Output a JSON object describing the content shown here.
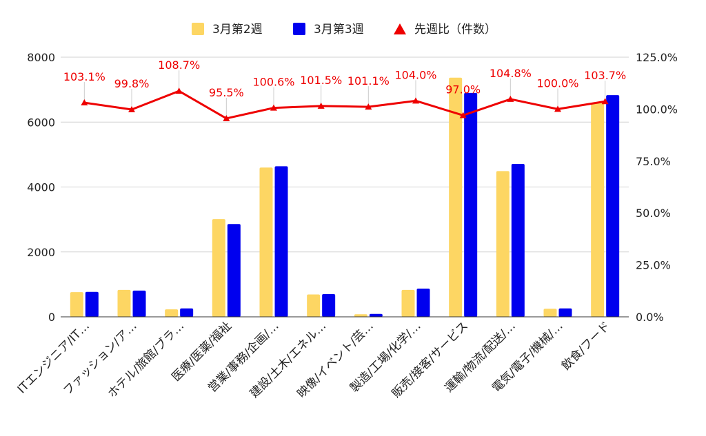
{
  "chart_data": {
    "type": "bar",
    "categories": [
      "ITエンジニア/IT…",
      "ファッション/ア…",
      "ホテル/旅館/ブラ…",
      "医療/医薬/福祉",
      "営業/事務/企画/…",
      "建設/土木/エネル…",
      "映像/イベント/芸…",
      "製造/工場/化学/…",
      "販売/接客/サービス",
      "運輸/物流/配送/…",
      "電気/電子/機械/…",
      "飲食/フード"
    ],
    "series": [
      {
        "name": "3月第2週",
        "color": "#FDD663",
        "axis": "left",
        "values": [
          760,
          830,
          230,
          3010,
          4600,
          690,
          80,
          830,
          7370,
          4490,
          250,
          6590
        ]
      },
      {
        "name": "3月第3週",
        "color": "#0000EE",
        "axis": "left",
        "values": [
          770,
          810,
          260,
          2860,
          4640,
          700,
          90,
          870,
          6900,
          4710,
          260,
          6830
        ]
      },
      {
        "name": "先週比（件数）",
        "type": "line",
        "color": "#EE0000",
        "axis": "right",
        "values": [
          103.1,
          99.8,
          108.7,
          95.5,
          100.6,
          101.5,
          101.1,
          104.0,
          97.0,
          104.8,
          100.0,
          103.7
        ],
        "labels": [
          "103.1%",
          "99.8%",
          "108.7%",
          "95.5%",
          "100.6%",
          "101.5%",
          "101.1%",
          "104.0%",
          "97.0%",
          "104.8%",
          "100.0%",
          "103.7%"
        ]
      }
    ],
    "y_left": {
      "min": 0,
      "max": 8000,
      "ticks": [
        "0",
        "2000",
        "4000",
        "6000",
        "8000"
      ],
      "tick_values": [
        0,
        2000,
        4000,
        6000,
        8000
      ]
    },
    "y_right": {
      "min": 0,
      "max": 125,
      "ticks": [
        "0.0%",
        "25.0%",
        "50.0%",
        "75.0%",
        "100.0%",
        "125.0%"
      ],
      "tick_values": [
        0,
        25,
        50,
        75,
        100,
        125
      ]
    },
    "legend": {
      "position": "top"
    },
    "grid": true
  }
}
